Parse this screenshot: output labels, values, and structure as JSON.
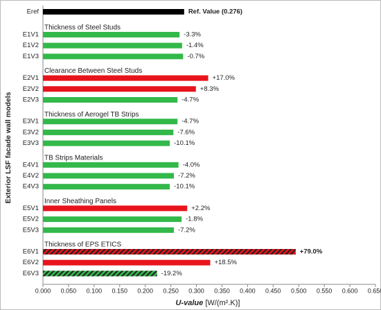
{
  "chart_data": {
    "type": "bar",
    "orientation": "horizontal",
    "ylabel": "Exterior LSF facade wall models",
    "xlabel": {
      "name": "U-value",
      "unit": "[W/(m².K)]"
    },
    "xlim": [
      0,
      0.65
    ],
    "xticks": [
      {
        "value": 0,
        "label": "0.000"
      },
      {
        "value": 0.05,
        "label": "0.050"
      },
      {
        "value": 0.1,
        "label": "0.100"
      },
      {
        "value": 0.15,
        "label": "0.150"
      },
      {
        "value": 0.2,
        "label": "0.200"
      },
      {
        "value": 0.25,
        "label": "0.250"
      },
      {
        "value": 0.3,
        "label": "0.300"
      },
      {
        "value": 0.35,
        "label": "0.350"
      },
      {
        "value": 0.4,
        "label": "0.400"
      },
      {
        "value": 0.45,
        "label": "0.450"
      },
      {
        "value": 0.5,
        "label": "0.500"
      },
      {
        "value": 0.55,
        "label": "0.550"
      },
      {
        "value": 0.6,
        "label": "0.600"
      },
      {
        "value": 0.65,
        "label": "0.650"
      }
    ],
    "reference": {
      "category": "Eref",
      "value": 0.276,
      "label": "Ref. Value (0.276)",
      "color": "#000000"
    },
    "groups": [
      {
        "title": "Thickness of Steel Studs",
        "categories": [
          "E1V1",
          "E1V2",
          "E1V3"
        ],
        "values": [
          0.267,
          0.272,
          0.274
        ],
        "value_labels": [
          "-3.3%",
          "-1.4%",
          "-0.7%"
        ],
        "colors": [
          "#33b84a",
          "#33b84a",
          "#33b84a"
        ],
        "hatched": [
          false,
          false,
          false
        ]
      },
      {
        "title": "Clearance Between Steel Studs",
        "categories": [
          "E2V1",
          "E2V2",
          "E2V3"
        ],
        "values": [
          0.323,
          0.299,
          0.263
        ],
        "value_labels": [
          "+17.0%",
          "+8.3%",
          "-4.7%"
        ],
        "colors": [
          "#e8141c",
          "#e8141c",
          "#33b84a"
        ],
        "hatched": [
          false,
          false,
          false
        ]
      },
      {
        "title": "Thickness of Aerogel TB Strips",
        "categories": [
          "E3V1",
          "E3V2",
          "E3V3"
        ],
        "values": [
          0.263,
          0.255,
          0.248
        ],
        "value_labels": [
          "-4.7%",
          "-7.6%",
          "-10.1%"
        ],
        "colors": [
          "#33b84a",
          "#33b84a",
          "#33b84a"
        ],
        "hatched": [
          false,
          false,
          false
        ]
      },
      {
        "title": "TB Strips Materials",
        "categories": [
          "E4V1",
          "E4V2",
          "E4V3"
        ],
        "values": [
          0.265,
          0.256,
          0.248
        ],
        "value_labels": [
          "-4.0%",
          "-7.2%",
          "-10.1%"
        ],
        "colors": [
          "#33b84a",
          "#33b84a",
          "#33b84a"
        ],
        "hatched": [
          false,
          false,
          false
        ]
      },
      {
        "title": "Inner Sheathing Panels",
        "categories": [
          "E5V1",
          "E5V2",
          "E5V3"
        ],
        "values": [
          0.282,
          0.271,
          0.256
        ],
        "value_labels": [
          "+2.2%",
          "-1.8%",
          "-7.2%"
        ],
        "colors": [
          "#e8141c",
          "#33b84a",
          "#33b84a"
        ],
        "hatched": [
          false,
          false,
          false
        ]
      },
      {
        "title": "Thickness of EPS ETICS",
        "categories": [
          "E6V1",
          "E6V2",
          "E6V3"
        ],
        "values": [
          0.494,
          0.327,
          0.223
        ],
        "value_labels": [
          "+79.0%",
          "+18.5%",
          "-19.2%"
        ],
        "colors": [
          "#e8141c",
          "#e8141c",
          "#33b84a"
        ],
        "hatched": [
          true,
          false,
          true
        ]
      }
    ]
  }
}
